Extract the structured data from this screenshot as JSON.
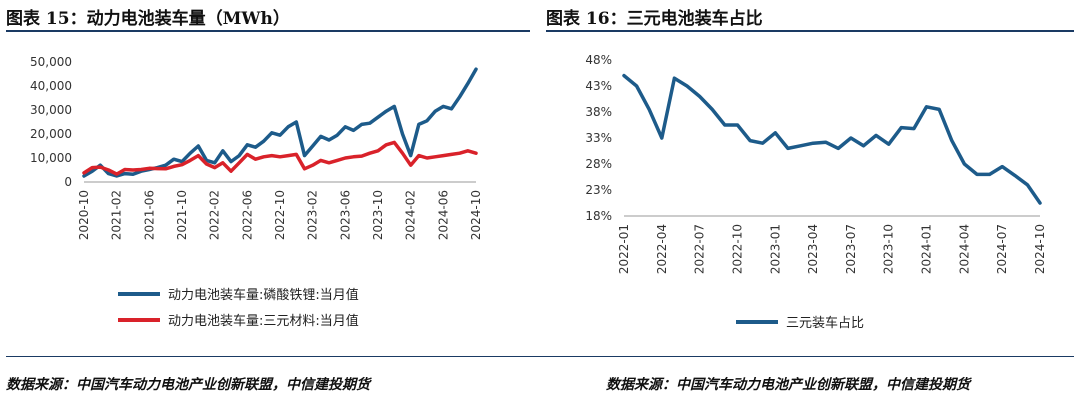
{
  "left": {
    "title": "图表 15：动力电池装车量（MWh）",
    "source": "数据来源：中国汽车动力电池产业创新联盟，中信建投期货"
  },
  "right": {
    "title": "图表 16：三元电池装车占比",
    "source": "数据来源：中国汽车动力电池产业创新联盟，中信建投期货"
  },
  "colors": {
    "lfp": "#1d5b8a",
    "ncm": "#d9222a",
    "share": "#1d5b8a",
    "rule": "#1a3a63"
  },
  "chart_data": [
    {
      "type": "line",
      "ylim": [
        0,
        50000
      ],
      "yticks": [
        0,
        10000,
        20000,
        30000,
        40000,
        50000
      ],
      "ytick_labels": [
        "0",
        "10,000",
        "20,000",
        "30,000",
        "40,000",
        "50,000"
      ],
      "xtick_labels": [
        "2020-10",
        "2021-02",
        "2021-06",
        "2021-10",
        "2022-02",
        "2022-06",
        "2022-10",
        "2023-02",
        "2023-06",
        "2023-10",
        "2024-02",
        "2024-06",
        "2024-10"
      ],
      "x": [
        "2020-10",
        "2020-11",
        "2020-12",
        "2021-01",
        "2021-02",
        "2021-03",
        "2021-04",
        "2021-05",
        "2021-06",
        "2021-07",
        "2021-08",
        "2021-09",
        "2021-10",
        "2021-11",
        "2021-12",
        "2022-01",
        "2022-02",
        "2022-03",
        "2022-04",
        "2022-05",
        "2022-06",
        "2022-07",
        "2022-08",
        "2022-09",
        "2022-10",
        "2022-11",
        "2022-12",
        "2023-01",
        "2023-02",
        "2023-03",
        "2023-04",
        "2023-05",
        "2023-06",
        "2023-07",
        "2023-08",
        "2023-09",
        "2023-10",
        "2023-11",
        "2023-12",
        "2024-01",
        "2024-02",
        "2024-03",
        "2024-04",
        "2024-05",
        "2024-06",
        "2024-07",
        "2024-08",
        "2024-09",
        "2024-10"
      ],
      "series": [
        {
          "name": "动力电池装车量:磷酸铁锂:当月值",
          "values": [
            2500,
            4500,
            7000,
            3500,
            2500,
            3500,
            3200,
            4500,
            5200,
            6000,
            7000,
            9500,
            8500,
            12000,
            15000,
            9000,
            8000,
            13000,
            8500,
            11000,
            15500,
            14500,
            17000,
            20500,
            19500,
            23000,
            25000,
            11000,
            15000,
            19000,
            17500,
            19500,
            23000,
            21500,
            24000,
            24500,
            27000,
            29500,
            31500,
            20000,
            11000,
            24000,
            25500,
            29500,
            31500,
            30500,
            35500,
            41000,
            47000
          ]
        },
        {
          "name": "动力电池装车量:三元材料:当月值",
          "values": [
            3800,
            6000,
            6200,
            5000,
            3300,
            5200,
            5000,
            5200,
            5700,
            5600,
            5500,
            6500,
            7200,
            9000,
            11000,
            7500,
            6000,
            8000,
            4500,
            8000,
            11500,
            9500,
            10500,
            11000,
            10500,
            11000,
            11500,
            5500,
            7000,
            9000,
            8000,
            9000,
            10000,
            10500,
            10800,
            12000,
            13000,
            15500,
            16500,
            12000,
            7000,
            11000,
            10000,
            10500,
            11000,
            11500,
            12000,
            13000,
            12000
          ]
        }
      ]
    },
    {
      "type": "line",
      "ylim": [
        18,
        48
      ],
      "yticks": [
        18,
        23,
        28,
        33,
        38,
        43,
        48
      ],
      "ytick_labels": [
        "18%",
        "23%",
        "28%",
        "33%",
        "38%",
        "43%",
        "48%"
      ],
      "xtick_labels": [
        "2022-01",
        "2022-04",
        "2022-07",
        "2022-10",
        "2023-01",
        "2023-04",
        "2023-07",
        "2023-10",
        "2024-01",
        "2024-04",
        "2024-07",
        "2024-10"
      ],
      "x": [
        "2022-01",
        "2022-02",
        "2022-03",
        "2022-04",
        "2022-05",
        "2022-06",
        "2022-07",
        "2022-08",
        "2022-09",
        "2022-10",
        "2022-11",
        "2022-12",
        "2023-01",
        "2023-02",
        "2023-03",
        "2023-04",
        "2023-05",
        "2023-06",
        "2023-07",
        "2023-08",
        "2023-09",
        "2023-10",
        "2023-11",
        "2023-12",
        "2024-01",
        "2024-02",
        "2024-03",
        "2024-04",
        "2024-05",
        "2024-06",
        "2024-07",
        "2024-08",
        "2024-09",
        "2024-10"
      ],
      "series": [
        {
          "name": "三元装车占比",
          "values": [
            45,
            43,
            38.5,
            33,
            44.5,
            43,
            41,
            38.5,
            35.5,
            35.5,
            32.5,
            32,
            34,
            31,
            31.5,
            32,
            32.2,
            31,
            33,
            31.5,
            33.5,
            31.8,
            35,
            34.8,
            39,
            38.5,
            32.5,
            28,
            26,
            26,
            27.5,
            25.8,
            24,
            20.5
          ]
        }
      ]
    }
  ]
}
